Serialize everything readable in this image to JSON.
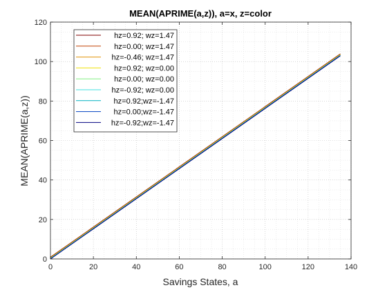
{
  "chart_data": {
    "type": "line",
    "title": "MEAN(APRIME(a,z)), a=x, z=color",
    "xlabel": "Savings States, a",
    "ylabel": "MEAN(APRIME(a,z))",
    "xlim": [
      0,
      140
    ],
    "ylim": [
      0,
      120
    ],
    "xticks": [
      0,
      20,
      40,
      60,
      80,
      100,
      120,
      140
    ],
    "yticks": [
      0,
      20,
      40,
      60,
      80,
      100,
      120
    ],
    "grid": "major and minor, dotted",
    "legend_position": "top-left",
    "series": [
      {
        "name": "hz=0.92; wz=1.47",
        "color": "#800000",
        "x": [
          0,
          135
        ],
        "y": [
          0.9,
          103.9
        ]
      },
      {
        "name": "hz=0.00; wz=1.47",
        "color": "#c04000",
        "x": [
          0,
          135
        ],
        "y": [
          0.7,
          103.7
        ]
      },
      {
        "name": "hz=-0.46; wz=1.47",
        "color": "#e09000",
        "x": [
          0,
          135
        ],
        "y": [
          0.6,
          103.6
        ]
      },
      {
        "name": "hz=0.92; wz=0.00",
        "color": "#f0e000",
        "x": [
          0,
          135
        ],
        "y": [
          0.4,
          103.4
        ]
      },
      {
        "name": "hz=0.00; wz=0.00",
        "color": "#80f080",
        "x": [
          0,
          135
        ],
        "y": [
          0.3,
          103.3
        ]
      },
      {
        "name": "hz=-0.92; wz=0.00",
        "color": "#40e0e0",
        "x": [
          0,
          135
        ],
        "y": [
          0.2,
          103.2
        ]
      },
      {
        "name": "hz=0.92;wz=-1.47",
        "color": "#00b0c0",
        "x": [
          0,
          135
        ],
        "y": [
          0.1,
          103.1
        ]
      },
      {
        "name": "hz=0.00;wz=-1.47",
        "color": "#0040c0",
        "x": [
          0,
          135
        ],
        "y": [
          0.0,
          103.0
        ]
      },
      {
        "name": "hz=-0.92;wz=-1.47",
        "color": "#000080",
        "x": [
          0,
          135
        ],
        "y": [
          0.0,
          102.9
        ]
      }
    ]
  }
}
